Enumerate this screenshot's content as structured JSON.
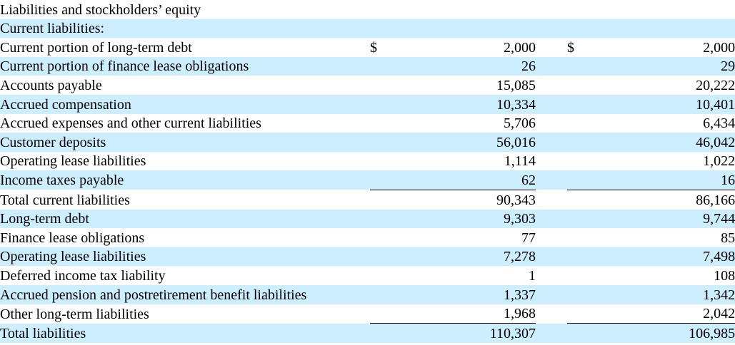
{
  "section_heading": "Liabilities and stockholders’ equity",
  "current_heading": "Current liabilities:",
  "currency_symbol": "$",
  "rows": [
    {
      "label": "Current portion of long-term debt",
      "v1": "2,000",
      "v2": "2,000"
    },
    {
      "label": "Current portion of finance lease obligations",
      "v1": "26",
      "v2": "29"
    },
    {
      "label": "Accounts payable",
      "v1": "15,085",
      "v2": "20,222"
    },
    {
      "label": "Accrued compensation",
      "v1": "10,334",
      "v2": "10,401"
    },
    {
      "label": "Accrued expenses and other current liabilities",
      "v1": "5,706",
      "v2": "6,434"
    },
    {
      "label": "Customer deposits",
      "v1": "56,016",
      "v2": "46,042"
    },
    {
      "label": "Operating lease liabilities",
      "v1": "1,114",
      "v2": "1,022"
    },
    {
      "label": "Income taxes payable",
      "v1": "62",
      "v2": "16"
    },
    {
      "label": "Total current liabilities",
      "v1": "90,343",
      "v2": "86,166"
    },
    {
      "label": "Long-term debt",
      "v1": "9,303",
      "v2": "9,744"
    },
    {
      "label": "Finance lease obligations",
      "v1": "77",
      "v2": "85"
    },
    {
      "label": "Operating lease liabilities",
      "v1": "7,278",
      "v2": "7,498"
    },
    {
      "label": "Deferred income tax liability",
      "v1": "1",
      "v2": "108"
    },
    {
      "label": "Accrued pension and postretirement benefit liabilities",
      "v1": "1,337",
      "v2": "1,342"
    },
    {
      "label": "Other long-term liabilities",
      "v1": "1,968",
      "v2": "2,042"
    },
    {
      "label": "Total liabilities",
      "v1": "110,307",
      "v2": "106,985"
    }
  ],
  "colors": {
    "row_shade": "#cceeff",
    "text": "#000000"
  }
}
